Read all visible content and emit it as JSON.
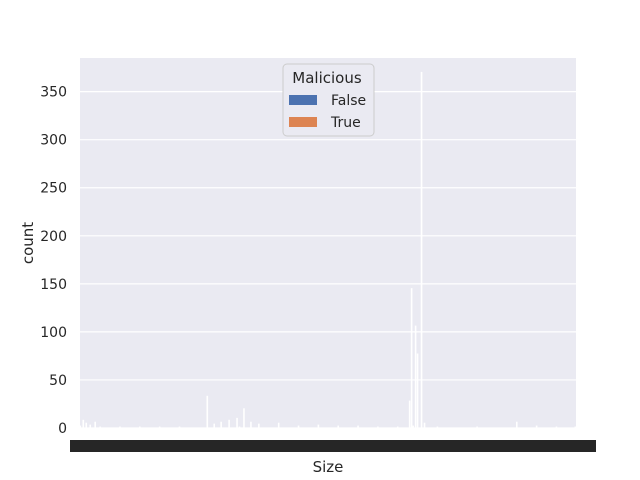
{
  "chart_data": {
    "type": "bar",
    "title": "",
    "xlabel": "Size",
    "ylabel": "count",
    "ylim": [
      0,
      385
    ],
    "yticks": [
      0,
      50,
      100,
      150,
      200,
      250,
      300,
      350
    ],
    "x_tick_labels_note": "tick labels overlap into an unreadable dark band",
    "grid": true,
    "legend": {
      "title": "Malicious",
      "placement": "top-center",
      "entries": [
        {
          "label": "False",
          "color": "#4c72b0"
        },
        {
          "label": "True",
          "color": "#dd8452"
        }
      ]
    },
    "category_count": 500,
    "series": [
      {
        "name": "False",
        "color": "#4c72b0",
        "points": [
          [
            0,
            2
          ],
          [
            3,
            8
          ],
          [
            6,
            5
          ],
          [
            10,
            3
          ],
          [
            15,
            6
          ],
          [
            20,
            1
          ],
          [
            40,
            1
          ],
          [
            60,
            1
          ],
          [
            80,
            1
          ],
          [
            100,
            1
          ],
          [
            128,
            33
          ],
          [
            135,
            4
          ],
          [
            142,
            6
          ],
          [
            150,
            8
          ],
          [
            158,
            10
          ],
          [
            165,
            20
          ],
          [
            172,
            6
          ],
          [
            180,
            4
          ],
          [
            200,
            5
          ],
          [
            220,
            2
          ],
          [
            240,
            3
          ],
          [
            260,
            2
          ],
          [
            280,
            2
          ],
          [
            300,
            1
          ],
          [
            320,
            1
          ],
          [
            332,
            28
          ],
          [
            334,
            145
          ],
          [
            338,
            106
          ],
          [
            340,
            77
          ],
          [
            344,
            370
          ],
          [
            347,
            5
          ],
          [
            360,
            1
          ],
          [
            400,
            1
          ],
          [
            440,
            6
          ],
          [
            460,
            2
          ],
          [
            480,
            1
          ],
          [
            499,
            1
          ]
        ]
      },
      {
        "name": "True",
        "color": "#dd8452",
        "points": [
          [
            160,
            1
          ],
          [
            335,
            2
          ]
        ]
      }
    ]
  },
  "colors": {
    "axes_bg": "#eaeaf2",
    "grid": "#ffffff",
    "bar_edge": "#ffffff",
    "tick_band": "#262626"
  }
}
